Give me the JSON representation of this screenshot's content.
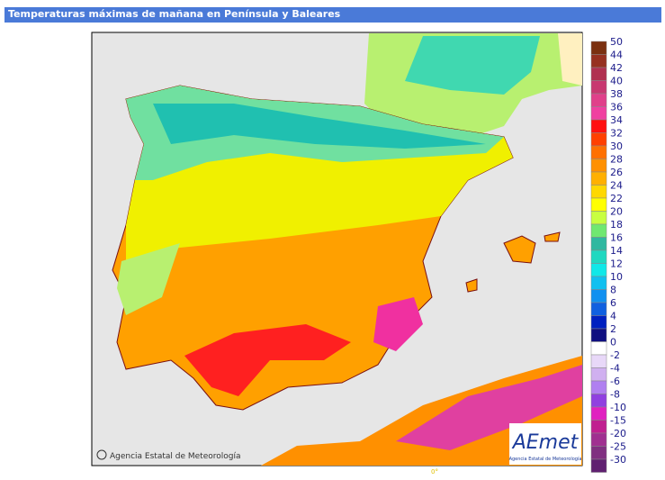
{
  "header": {
    "title": "Temperaturas máximas de mañana en Península y Baleares"
  },
  "legend": [
    {
      "label": 50,
      "color": "#7a3010"
    },
    {
      "label": 44,
      "color": "#963020"
    },
    {
      "label": 42,
      "color": "#b03050"
    },
    {
      "label": 40,
      "color": "#c83870"
    },
    {
      "label": 38,
      "color": "#e0408a"
    },
    {
      "label": 36,
      "color": "#f040a0"
    },
    {
      "label": 34,
      "color": "#ff1010"
    },
    {
      "label": 32,
      "color": "#ff4000"
    },
    {
      "label": 30,
      "color": "#ff7000"
    },
    {
      "label": 28,
      "color": "#ff9000"
    },
    {
      "label": 26,
      "color": "#ffb000"
    },
    {
      "label": 24,
      "color": "#ffd800"
    },
    {
      "label": 22,
      "color": "#ffff00"
    },
    {
      "label": 20,
      "color": "#c8ff40"
    },
    {
      "label": 18,
      "color": "#70e870"
    },
    {
      "label": 16,
      "color": "#30b8a0"
    },
    {
      "label": 14,
      "color": "#20d8c0"
    },
    {
      "label": 12,
      "color": "#10e8e8"
    },
    {
      "label": 10,
      "color": "#10c0f0"
    },
    {
      "label": 8,
      "color": "#1090f0"
    },
    {
      "label": 6,
      "color": "#1060e0"
    },
    {
      "label": 4,
      "color": "#0020c0"
    },
    {
      "label": 2,
      "color": "#101080"
    },
    {
      "label": 0,
      "color": "#ffffff"
    },
    {
      "label": -2,
      "color": "#e8d8f8"
    },
    {
      "label": -4,
      "color": "#d0b0f0"
    },
    {
      "label": -6,
      "color": "#b080f0"
    },
    {
      "label": -8,
      "color": "#9040e0"
    },
    {
      "label": -10,
      "color": "#e020c0"
    },
    {
      "label": -15,
      "color": "#c02090"
    },
    {
      "label": -20,
      "color": "#a03090"
    },
    {
      "label": -25,
      "color": "#803080"
    },
    {
      "label": -30,
      "color": "#602070"
    }
  ],
  "credit": "Agencia Estatal de Meteorología",
  "logo": {
    "name": "AEmet",
    "subtitle": "Agencia Estatal de Meteorología"
  },
  "meridian": "0°"
}
